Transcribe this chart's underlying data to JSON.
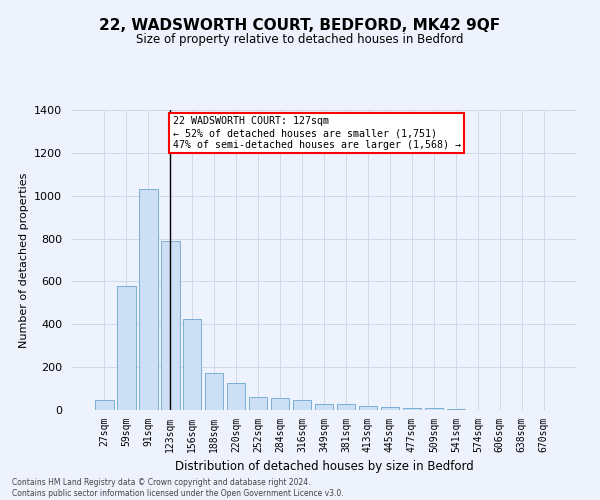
{
  "title": "22, WADSWORTH COURT, BEDFORD, MK42 9QF",
  "subtitle": "Size of property relative to detached houses in Bedford",
  "xlabel": "Distribution of detached houses by size in Bedford",
  "ylabel": "Number of detached properties",
  "categories": [
    "27sqm",
    "59sqm",
    "91sqm",
    "123sqm",
    "156sqm",
    "188sqm",
    "220sqm",
    "252sqm",
    "284sqm",
    "316sqm",
    "349sqm",
    "381sqm",
    "413sqm",
    "445sqm",
    "477sqm",
    "509sqm",
    "541sqm",
    "574sqm",
    "606sqm",
    "638sqm",
    "670sqm"
  ],
  "values": [
    45,
    578,
    1033,
    788,
    423,
    175,
    128,
    60,
    55,
    45,
    30,
    28,
    20,
    15,
    10,
    8,
    5,
    0,
    0,
    0,
    0
  ],
  "bar_color": "#ccdff5",
  "bar_edge_color": "#7aafd4",
  "vline_index": 3,
  "annotation_line1": "22 WADSWORTH COURT: 127sqm",
  "annotation_line2": "← 52% of detached houses are smaller (1,751)",
  "annotation_line3": "47% of semi-detached houses are larger (1,568) →",
  "ylim": [
    0,
    1400
  ],
  "yticks": [
    0,
    200,
    400,
    600,
    800,
    1000,
    1200,
    1400
  ],
  "footer_line1": "Contains HM Land Registry data © Crown copyright and database right 2024.",
  "footer_line2": "Contains public sector information licensed under the Open Government Licence v3.0.",
  "bg_color": "#eef2fc",
  "grid_color": "#d0d8ec"
}
